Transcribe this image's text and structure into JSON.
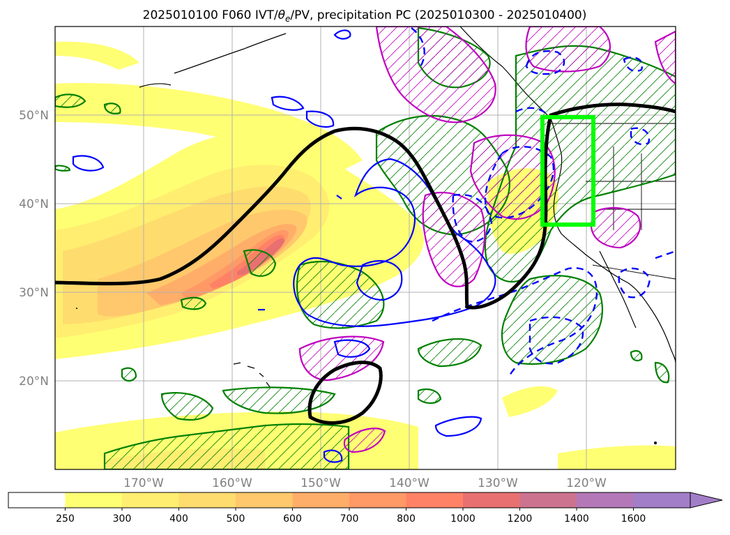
{
  "title": "2025010100 F060 IVT/θe/PV, precipitation PC (2025010300 - 2025010400)",
  "title_parts": {
    "pre": "2025010100 F060 IVT/",
    "theta": "θ",
    "sub": "e",
    "post": "/PV, precipitation PC (2025010300 - 2025010400)"
  },
  "map": {
    "lat_labels": [
      "50°N",
      "40°N",
      "30°N",
      "20°N"
    ],
    "lon_labels": [
      "170°W",
      "160°W",
      "150°W",
      "140°W",
      "130°W",
      "120°W"
    ],
    "highlight_box_color": "#00ff00",
    "pv_contour_color": "#000000",
    "positive_contour_color": "#0000ff",
    "precip_contour_color": "#008000",
    "magenta_contour_color": "#bf00bf"
  },
  "colorbar": {
    "labels": [
      "250",
      "300",
      "400",
      "500",
      "600",
      "700",
      "800",
      "1000",
      "1200",
      "1400",
      "1600"
    ],
    "colors": [
      "#ffffff",
      "#ffff73",
      "#ffee70",
      "#ffdc6e",
      "#ffc86c",
      "#ffae69",
      "#ff9966",
      "#ff8266",
      "#e87070",
      "#cc7390",
      "#b478b8",
      "#a37ec8"
    ],
    "extend": "max"
  }
}
